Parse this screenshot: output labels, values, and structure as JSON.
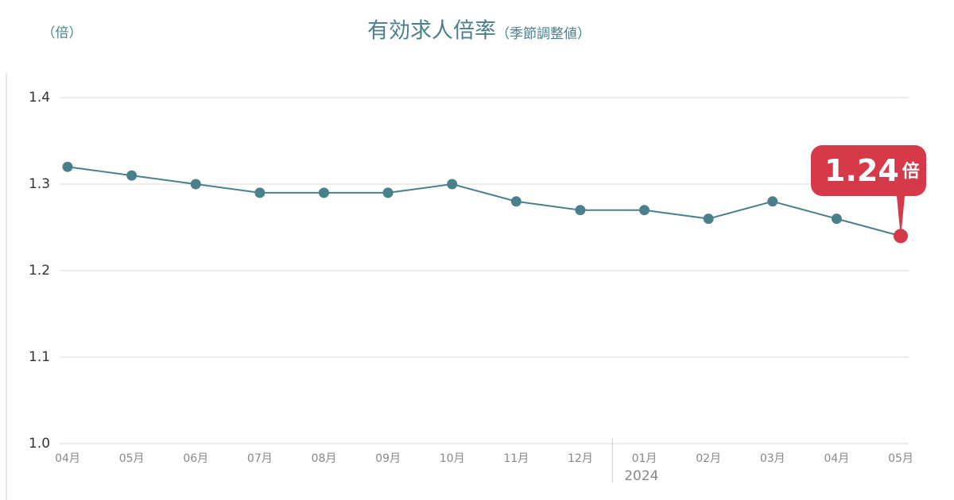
{
  "chart_data": {
    "type": "line",
    "title": "有効求人倍率",
    "subtitle": "（季節調整値）",
    "y_unit_label": "（倍）",
    "categories": [
      "04月",
      "05月",
      "06月",
      "07月",
      "08月",
      "09月",
      "10月",
      "11月",
      "12月",
      "01月",
      "02月",
      "03月",
      "04月",
      "05月"
    ],
    "series": [
      {
        "name": "有効求人倍率",
        "color": "#4a7f8c",
        "values": [
          1.32,
          1.31,
          1.3,
          1.29,
          1.29,
          1.29,
          1.3,
          1.28,
          1.27,
          1.27,
          1.26,
          1.28,
          1.26,
          1.24
        ]
      }
    ],
    "ylim": [
      1.0,
      1.4
    ],
    "yticks": [
      {
        "value": 1.0,
        "label": "1.0"
      },
      1.1,
      1.2,
      1.3,
      1.4
    ],
    "grid": true,
    "year_annotation": {
      "text": "2024",
      "category": "01月"
    },
    "callout": {
      "unit": "倍",
      "color": "#d63a4a"
    }
  }
}
